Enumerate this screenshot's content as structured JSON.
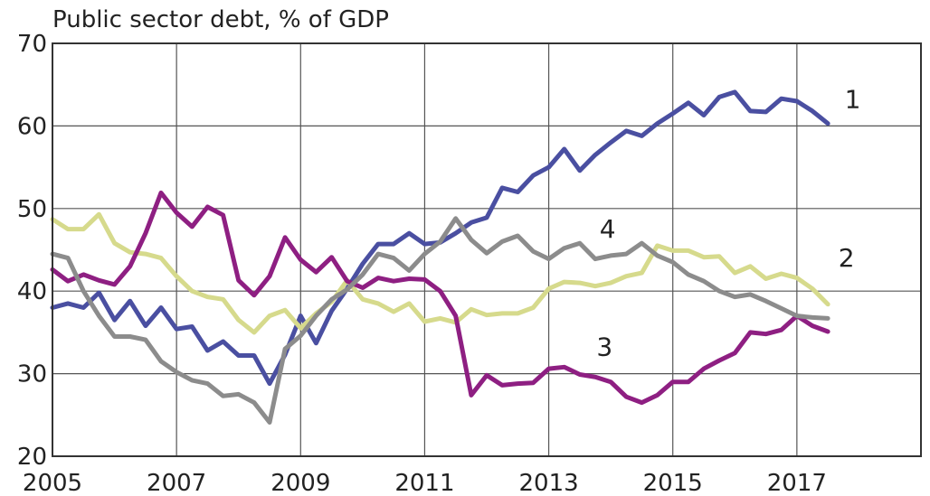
{
  "chart_data": {
    "type": "line",
    "title": "Public sector debt, % of GDP",
    "xlim": [
      2005,
      2019
    ],
    "ylim": [
      20,
      70
    ],
    "x_ticks": [
      2005,
      2007,
      2009,
      2011,
      2013,
      2015,
      2017
    ],
    "y_ticks": [
      20,
      30,
      40,
      50,
      60,
      70
    ],
    "grid": true,
    "series": [
      {
        "name": "1",
        "color": "#4a4fa1",
        "points": [
          [
            2005.0,
            38.0
          ],
          [
            2005.25,
            38.5
          ],
          [
            2005.5,
            38.0
          ],
          [
            2005.75,
            39.8
          ],
          [
            2006.0,
            36.5
          ],
          [
            2006.25,
            38.8
          ],
          [
            2006.5,
            35.8
          ],
          [
            2006.75,
            38.0
          ],
          [
            2007.0,
            35.4
          ],
          [
            2007.25,
            35.7
          ],
          [
            2007.5,
            32.8
          ],
          [
            2007.75,
            33.9
          ],
          [
            2008.0,
            32.2
          ],
          [
            2008.25,
            32.2
          ],
          [
            2008.5,
            28.8
          ],
          [
            2008.75,
            32.3
          ],
          [
            2009.0,
            37.0
          ],
          [
            2009.25,
            33.7
          ],
          [
            2009.5,
            37.6
          ],
          [
            2009.75,
            40.3
          ],
          [
            2010.0,
            43.3
          ],
          [
            2010.25,
            45.7
          ],
          [
            2010.5,
            45.7
          ],
          [
            2010.75,
            47.0
          ],
          [
            2011.0,
            45.7
          ],
          [
            2011.25,
            45.9
          ],
          [
            2011.5,
            47.0
          ],
          [
            2011.75,
            48.3
          ],
          [
            2012.0,
            48.9
          ],
          [
            2012.25,
            52.5
          ],
          [
            2012.5,
            52.0
          ],
          [
            2012.75,
            54.0
          ],
          [
            2013.0,
            55.0
          ],
          [
            2013.25,
            57.2
          ],
          [
            2013.5,
            54.6
          ],
          [
            2013.75,
            56.5
          ],
          [
            2014.0,
            58.0
          ],
          [
            2014.25,
            59.4
          ],
          [
            2014.5,
            58.8
          ],
          [
            2014.75,
            60.3
          ],
          [
            2015.0,
            61.5
          ],
          [
            2015.25,
            62.8
          ],
          [
            2015.5,
            61.3
          ],
          [
            2015.75,
            63.5
          ],
          [
            2016.0,
            64.1
          ],
          [
            2016.25,
            61.8
          ],
          [
            2016.5,
            61.7
          ],
          [
            2016.75,
            63.3
          ],
          [
            2017.0,
            63.0
          ],
          [
            2017.25,
            61.8
          ],
          [
            2017.5,
            60.3
          ]
        ]
      },
      {
        "name": "2",
        "color": "#d6da8c",
        "points": [
          [
            2005.0,
            48.7
          ],
          [
            2005.25,
            47.5
          ],
          [
            2005.5,
            47.5
          ],
          [
            2005.75,
            49.3
          ],
          [
            2006.0,
            45.8
          ],
          [
            2006.25,
            44.7
          ],
          [
            2006.5,
            44.5
          ],
          [
            2006.75,
            44.0
          ],
          [
            2007.0,
            41.8
          ],
          [
            2007.25,
            40.0
          ],
          [
            2007.5,
            39.3
          ],
          [
            2007.75,
            39.0
          ],
          [
            2008.0,
            36.5
          ],
          [
            2008.25,
            35.0
          ],
          [
            2008.5,
            37.0
          ],
          [
            2008.75,
            37.7
          ],
          [
            2009.0,
            35.5
          ],
          [
            2009.25,
            37.3
          ],
          [
            2009.5,
            38.7
          ],
          [
            2009.75,
            41.3
          ],
          [
            2010.0,
            39.0
          ],
          [
            2010.25,
            38.5
          ],
          [
            2010.5,
            37.5
          ],
          [
            2010.75,
            38.5
          ],
          [
            2011.0,
            36.3
          ],
          [
            2011.25,
            36.7
          ],
          [
            2011.5,
            36.2
          ],
          [
            2011.75,
            37.8
          ],
          [
            2012.0,
            37.1
          ],
          [
            2012.25,
            37.3
          ],
          [
            2012.5,
            37.3
          ],
          [
            2012.75,
            38.0
          ],
          [
            2013.0,
            40.3
          ],
          [
            2013.25,
            41.1
          ],
          [
            2013.5,
            41.0
          ],
          [
            2013.75,
            40.6
          ],
          [
            2014.0,
            41.0
          ],
          [
            2014.25,
            41.8
          ],
          [
            2014.5,
            42.2
          ],
          [
            2014.75,
            45.5
          ],
          [
            2015.0,
            44.9
          ],
          [
            2015.25,
            44.9
          ],
          [
            2015.5,
            44.1
          ],
          [
            2015.75,
            44.2
          ],
          [
            2016.0,
            42.2
          ],
          [
            2016.25,
            43.0
          ],
          [
            2016.5,
            41.5
          ],
          [
            2016.75,
            42.1
          ],
          [
            2017.0,
            41.6
          ],
          [
            2017.25,
            40.3
          ],
          [
            2017.5,
            38.4
          ]
        ]
      },
      {
        "name": "3",
        "color": "#8e1f82",
        "points": [
          [
            2005.0,
            42.6
          ],
          [
            2005.25,
            41.2
          ],
          [
            2005.5,
            42.0
          ],
          [
            2005.75,
            41.3
          ],
          [
            2006.0,
            40.8
          ],
          [
            2006.25,
            43.0
          ],
          [
            2006.5,
            47.0
          ],
          [
            2006.75,
            51.9
          ],
          [
            2007.0,
            49.5
          ],
          [
            2007.25,
            47.8
          ],
          [
            2007.5,
            50.2
          ],
          [
            2007.75,
            49.2
          ],
          [
            2008.0,
            41.3
          ],
          [
            2008.25,
            39.5
          ],
          [
            2008.5,
            41.8
          ],
          [
            2008.75,
            46.5
          ],
          [
            2009.0,
            43.8
          ],
          [
            2009.25,
            42.3
          ],
          [
            2009.5,
            44.1
          ],
          [
            2009.75,
            41.2
          ],
          [
            2010.0,
            40.4
          ],
          [
            2010.25,
            41.6
          ],
          [
            2010.5,
            41.2
          ],
          [
            2010.75,
            41.5
          ],
          [
            2011.0,
            41.4
          ],
          [
            2011.25,
            40.0
          ],
          [
            2011.5,
            37.0
          ],
          [
            2011.75,
            27.4
          ],
          [
            2012.0,
            29.8
          ],
          [
            2012.25,
            28.6
          ],
          [
            2012.5,
            28.8
          ],
          [
            2012.75,
            28.9
          ],
          [
            2013.0,
            30.6
          ],
          [
            2013.25,
            30.8
          ],
          [
            2013.5,
            29.9
          ],
          [
            2013.75,
            29.6
          ],
          [
            2014.0,
            29.0
          ],
          [
            2014.25,
            27.2
          ],
          [
            2014.5,
            26.5
          ],
          [
            2014.75,
            27.4
          ],
          [
            2015.0,
            29.0
          ],
          [
            2015.25,
            29.0
          ],
          [
            2015.5,
            30.6
          ],
          [
            2015.75,
            31.6
          ],
          [
            2016.0,
            32.5
          ],
          [
            2016.25,
            35.0
          ],
          [
            2016.5,
            34.8
          ],
          [
            2016.75,
            35.3
          ],
          [
            2017.0,
            37.0
          ],
          [
            2017.25,
            35.8
          ],
          [
            2017.5,
            35.1
          ]
        ]
      },
      {
        "name": "4",
        "color": "#8c8c8c",
        "points": [
          [
            2005.0,
            44.5
          ],
          [
            2005.25,
            44.0
          ],
          [
            2005.5,
            40.0
          ],
          [
            2005.75,
            37.0
          ],
          [
            2006.0,
            34.5
          ],
          [
            2006.25,
            34.5
          ],
          [
            2006.5,
            34.1
          ],
          [
            2006.75,
            31.5
          ],
          [
            2007.0,
            30.2
          ],
          [
            2007.25,
            29.2
          ],
          [
            2007.5,
            28.8
          ],
          [
            2007.75,
            27.3
          ],
          [
            2008.0,
            27.5
          ],
          [
            2008.25,
            26.5
          ],
          [
            2008.5,
            24.1
          ],
          [
            2008.75,
            33.0
          ],
          [
            2009.0,
            34.6
          ],
          [
            2009.25,
            37.0
          ],
          [
            2009.5,
            39.0
          ],
          [
            2009.75,
            40.2
          ],
          [
            2010.0,
            42.0
          ],
          [
            2010.25,
            44.5
          ],
          [
            2010.5,
            44.0
          ],
          [
            2010.75,
            42.5
          ],
          [
            2011.0,
            44.5
          ],
          [
            2011.25,
            46.0
          ],
          [
            2011.5,
            48.8
          ],
          [
            2011.75,
            46.2
          ],
          [
            2012.0,
            44.6
          ],
          [
            2012.25,
            46.0
          ],
          [
            2012.5,
            46.7
          ],
          [
            2012.75,
            44.8
          ],
          [
            2013.0,
            43.9
          ],
          [
            2013.25,
            45.2
          ],
          [
            2013.5,
            45.8
          ],
          [
            2013.75,
            43.9
          ],
          [
            2014.0,
            44.3
          ],
          [
            2014.25,
            44.5
          ],
          [
            2014.5,
            45.8
          ],
          [
            2014.75,
            44.3
          ],
          [
            2015.0,
            43.5
          ],
          [
            2015.25,
            42.0
          ],
          [
            2015.5,
            41.2
          ],
          [
            2015.75,
            40.0
          ],
          [
            2016.0,
            39.3
          ],
          [
            2016.25,
            39.6
          ],
          [
            2016.5,
            38.8
          ],
          [
            2016.75,
            37.9
          ],
          [
            2017.0,
            37.0
          ],
          [
            2017.25,
            36.8
          ],
          [
            2017.5,
            36.7
          ]
        ]
      }
    ],
    "labels": [
      {
        "text": "1",
        "x": 2017.9,
        "y": 62.2
      },
      {
        "text": "2",
        "x": 2017.8,
        "y": 43.0
      },
      {
        "text": "3",
        "x": 2013.9,
        "y": 32.2
      },
      {
        "text": "4",
        "x": 2013.95,
        "y": 46.5
      }
    ]
  }
}
